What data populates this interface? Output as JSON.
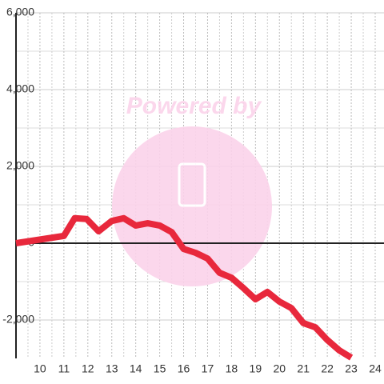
{
  "chart_data": {
    "type": "line",
    "watermark": "Powered by",
    "x": [
      9,
      11,
      11.45,
      11.95,
      12.45,
      13,
      13.5,
      14,
      14.5,
      15,
      15.5,
      16,
      16.5,
      17,
      17.5,
      18,
      18.5,
      19,
      19.5,
      20,
      20.5,
      21,
      21.5,
      22,
      22.5,
      23
    ],
    "series": [
      {
        "color": "#e8283c",
        "values": [
          0,
          190,
          650,
          630,
          310,
          580,
          650,
          460,
          520,
          460,
          290,
          -150,
          -250,
          -400,
          -770,
          -900,
          -1170,
          -1460,
          -1270,
          -1520,
          -1690,
          -2080,
          -2190,
          -2520,
          -2790,
          -2980
        ]
      }
    ],
    "xlim": [
      9,
      24
    ],
    "xticks": [
      10,
      11,
      12,
      13,
      14,
      15,
      16,
      17,
      18,
      19,
      20,
      21,
      22,
      23,
      24
    ],
    "ylim": [
      -3000,
      6000
    ],
    "yticks": [
      {
        "value": -2000,
        "label": "-2,000"
      },
      0,
      {
        "value": 2000,
        "label": "2,000"
      },
      {
        "value": 4000,
        "label": "4,000"
      },
      {
        "value": 6000,
        "label": "6,000"
      }
    ],
    "grid": true
  }
}
